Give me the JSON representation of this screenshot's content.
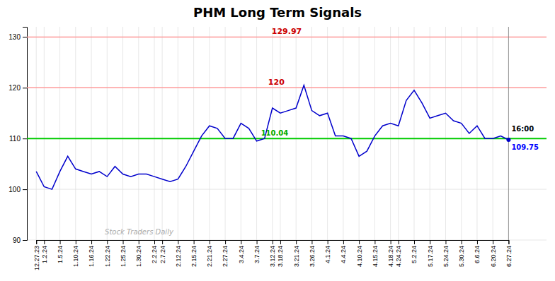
{
  "chart_data": {
    "type": "line",
    "title": "PHM Long Term Signals",
    "categories": [
      "12.27.23",
      "1.2.24",
      null,
      "1.5.24",
      null,
      "1.10.24",
      null,
      "1.16.24",
      null,
      "1.22.24",
      null,
      "1.25.24",
      null,
      "1.30.24",
      null,
      "2.2.24",
      "2.7.24",
      null,
      "2.12.24",
      null,
      "2.15.24",
      null,
      "2.21.24",
      null,
      "2.27.24",
      null,
      "3.4.24",
      null,
      "3.7.24",
      null,
      "3.12.24",
      "3.18.24",
      null,
      "3.21.24",
      null,
      "3.26.24",
      null,
      "4.1.24",
      null,
      "4.4.24",
      null,
      "4.10.24",
      null,
      "4.15.24",
      null,
      "4.18.24",
      "4.24.24",
      null,
      "5.2.24",
      null,
      "5.17.24",
      null,
      "5.24.24",
      null,
      "5.30.24",
      null,
      "6.6.24",
      null,
      "6.20.24",
      null,
      "6.27.24"
    ],
    "values": [
      103.5,
      100.5,
      100.0,
      103.5,
      106.5,
      104.0,
      103.5,
      103.0,
      103.5,
      102.5,
      104.5,
      103.0,
      102.5,
      103.0,
      103.0,
      102.5,
      102.0,
      101.5,
      102.0,
      104.5,
      107.5,
      110.5,
      112.5,
      112.0,
      110.0,
      110.0,
      113.0,
      112.0,
      109.5,
      110.0,
      116.0,
      115.0,
      115.5,
      116.0,
      120.5,
      115.5,
      114.5,
      115.0,
      110.5,
      110.5,
      110.0,
      106.5,
      107.5,
      110.5,
      112.5,
      113.0,
      112.5,
      117.5,
      119.5,
      117.0,
      114.0,
      114.5,
      115.0,
      113.5,
      113.0,
      111.0,
      112.5,
      110.0,
      110.0,
      110.5,
      109.75
    ],
    "color": "#0000cc",
    "ylim": [
      90,
      132
    ],
    "yticks": [
      90,
      100,
      110,
      120,
      130
    ],
    "grid": true,
    "reference_lines": [
      {
        "y": 130,
        "color": "#ff9999",
        "label": "129.97",
        "label_color": "#cc0000"
      },
      {
        "y": 120,
        "color": "#ff9999",
        "label": "120",
        "label_color": "#cc0000"
      },
      {
        "y": 110,
        "color": "#00cc00",
        "label": "110.04",
        "label_color": "#00aa00"
      }
    ],
    "end_labels": [
      {
        "text": "16:00",
        "color": "#000000"
      },
      {
        "text": "109.75",
        "color": "#0000ff"
      }
    ],
    "watermark": "Stock Traders Daily"
  }
}
